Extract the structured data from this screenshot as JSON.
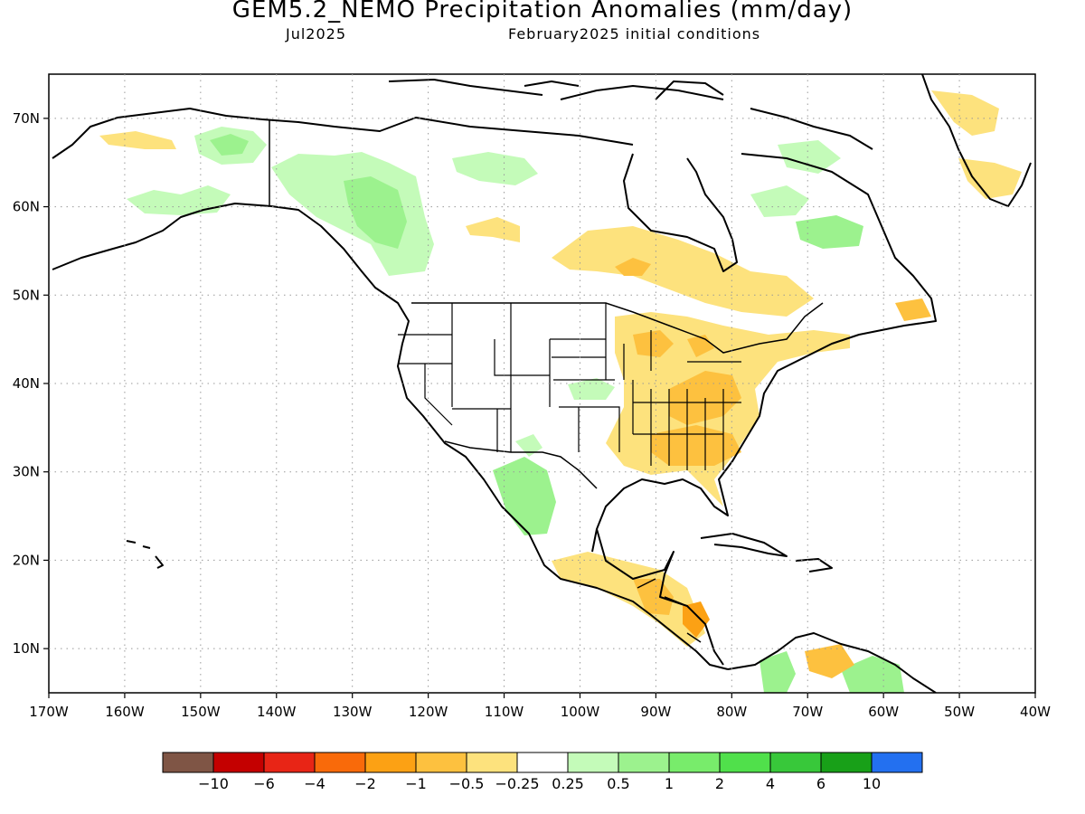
{
  "title": "GEM5.2_NEMO Precipitation Anomalies (mm/day)",
  "target_month": "Jul2025",
  "initial_conditions": "February2025 initial conditions",
  "map": {
    "lon_range": [
      -170,
      -40
    ],
    "lat_range": [
      5,
      75
    ],
    "lon_ticks": [
      "170W",
      "160W",
      "150W",
      "140W",
      "130W",
      "120W",
      "110W",
      "100W",
      "90W",
      "80W",
      "70W",
      "60W",
      "50W",
      "40W"
    ],
    "lat_ticks": [
      "10N",
      "20N",
      "30N",
      "40N",
      "50N",
      "60N",
      "70N"
    ],
    "grid": "dotted"
  },
  "legend": {
    "labels": [
      "-10",
      "-6",
      "-4",
      "-2",
      "-1",
      "-0.5",
      "-0.25",
      "0.25",
      "0.5",
      "1",
      "2",
      "4",
      "6",
      "10"
    ],
    "colors": [
      "#7f5545",
      "#c40000",
      "#e82516",
      "#f96a0a",
      "#fca114",
      "#fdc13f",
      "#fde27d",
      "#ffffff",
      "#c4fbb9",
      "#9cf28e",
      "#78ec6b",
      "#50e04b",
      "#38c83a",
      "#18a018",
      "#2370f0"
    ]
  },
  "colors": {
    "dry_light": "#fde27d",
    "dry_mid": "#fdc13f",
    "dry_strong": "#fca114",
    "wet_light": "#c4fbb9",
    "wet_mid": "#9cf28e",
    "wet_strong": "#78ec6b"
  }
}
